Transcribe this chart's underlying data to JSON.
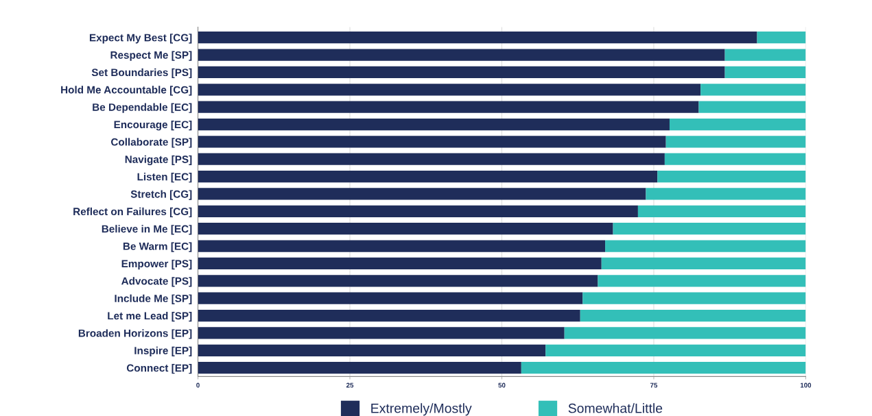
{
  "chart_data": {
    "type": "bar",
    "orientation": "horizontal",
    "stacked": true,
    "categories": [
      "Expect My Best [CG]",
      "Respect Me [SP]",
      "Set Boundaries [PS]",
      "Hold Me Accountable [CG]",
      "Be Dependable [EC]",
      "Encourage [EC]",
      "Collaborate [SP]",
      "Navigate [PS]",
      "Listen [EC]",
      "Stretch [CG]",
      "Reflect on Failures [CG]",
      "Believe in Me [EC]",
      "Be Warm [EC]",
      "Empower [PS]",
      "Advocate [PS]",
      "Include Me [SP]",
      "Let me Lead [SP]",
      "Broaden Horizons [EP]",
      "Inspire [EP]",
      "Connect [EP]"
    ],
    "series": [
      {
        "name": "Extremely/Mostly",
        "color": "#1f2d5a",
        "values": [
          92.0,
          86.7,
          86.7,
          82.7,
          82.4,
          77.6,
          77.0,
          76.8,
          75.6,
          73.7,
          72.4,
          68.3,
          67.0,
          66.4,
          65.8,
          63.3,
          62.9,
          60.3,
          57.2,
          53.2
        ]
      },
      {
        "name": "Somewhat/Little",
        "color": "#33bfb8",
        "values": [
          8.0,
          13.3,
          13.3,
          17.3,
          17.6,
          22.4,
          23.0,
          23.2,
          24.4,
          26.3,
          27.6,
          31.7,
          33.0,
          33.6,
          34.2,
          36.7,
          37.1,
          39.7,
          42.8,
          46.8
        ]
      }
    ],
    "xlim": [
      0,
      100
    ],
    "xticks": [
      0,
      25,
      50,
      75,
      100
    ],
    "grid": "x",
    "legend": "bottom"
  }
}
